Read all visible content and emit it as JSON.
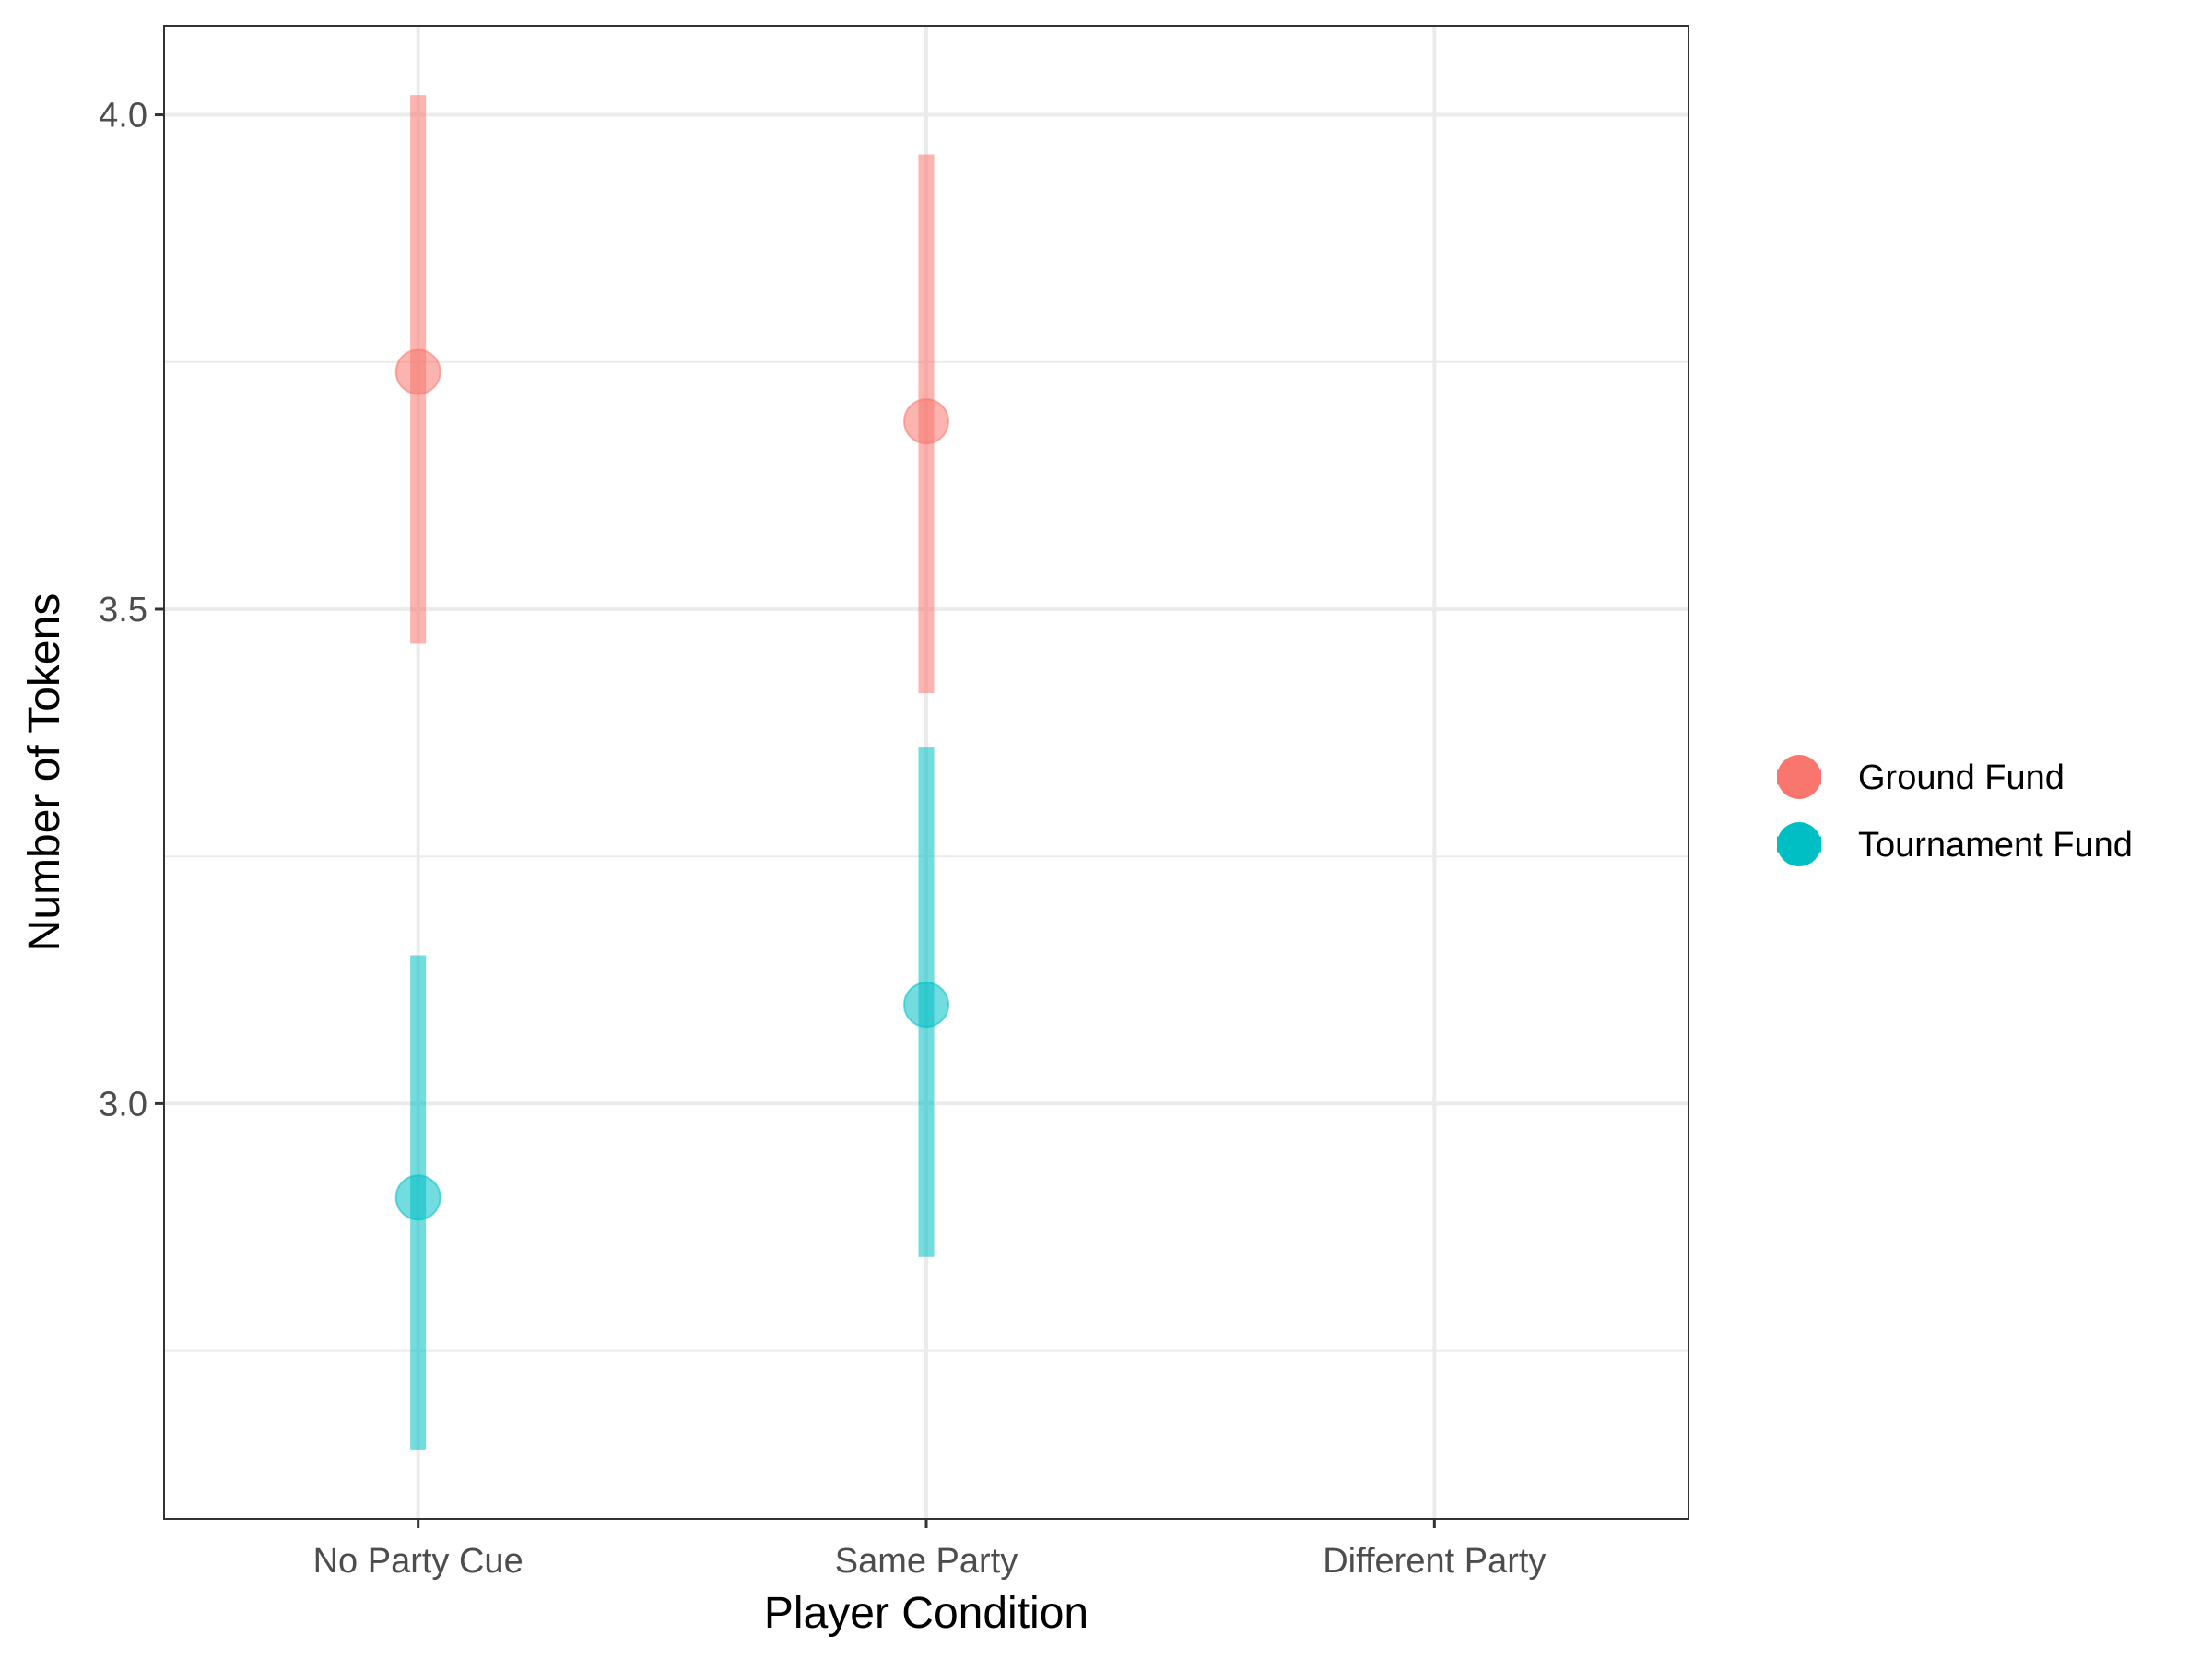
{
  "chart_data": {
    "type": "scatter",
    "title": "",
    "xlabel": "Player Condition",
    "ylabel": "Number of Tokens",
    "categories": [
      "No Party Cue",
      "Same Party",
      "Different Party"
    ],
    "ylim": [
      2.58,
      4.09
    ],
    "yticks": [
      "3.0",
      "3.5",
      "4.0"
    ],
    "grid": true,
    "legend_position": "right",
    "series": [
      {
        "name": "Ground Fund",
        "color": "#F8766D",
        "points": [
          {
            "category": "No Party Cue",
            "value": 3.74,
            "lower": 3.465,
            "upper": 4.02
          },
          {
            "category": "Same Party",
            "value": 3.69,
            "lower": 3.415,
            "upper": 3.96
          }
        ]
      },
      {
        "name": "Tournament Fund",
        "color": "#00BFC4",
        "points": [
          {
            "category": "No Party Cue",
            "value": 2.905,
            "lower": 2.65,
            "upper": 3.15
          },
          {
            "category": "Same Party",
            "value": 3.1,
            "lower": 2.845,
            "upper": 3.36
          }
        ]
      }
    ]
  }
}
